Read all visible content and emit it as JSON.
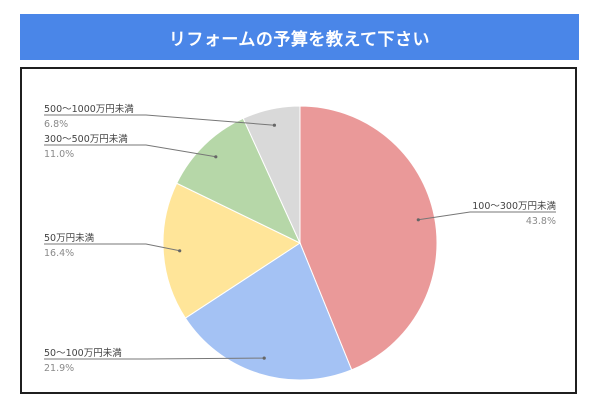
{
  "title": "リフォームの予算を教えて下さい",
  "colors": {
    "header_bg": "#4a86e8",
    "slices": [
      "#ea9999",
      "#a4c2f4",
      "#ffe599",
      "#b6d7a8",
      "#d9d9d9"
    ]
  },
  "chart_data": {
    "type": "pie",
    "title": "リフォームの予算を教えて下さい",
    "start_angle_deg": 0,
    "direction": "clockwise",
    "slices": [
      {
        "label": "100～300万円未満",
        "value": 43.8,
        "pct_label": "43.8%"
      },
      {
        "label": "50～100万円未満",
        "value": 21.9,
        "pct_label": "21.9%"
      },
      {
        "label": "50万円未満",
        "value": 16.4,
        "pct_label": "16.4%"
      },
      {
        "label": "300～500万円未満",
        "value": 11.0,
        "pct_label": "11.0%"
      },
      {
        "label": "500～1000万円未満",
        "value": 6.8,
        "pct_label": "6.8%"
      }
    ],
    "legend": "none",
    "labels": "outside"
  }
}
